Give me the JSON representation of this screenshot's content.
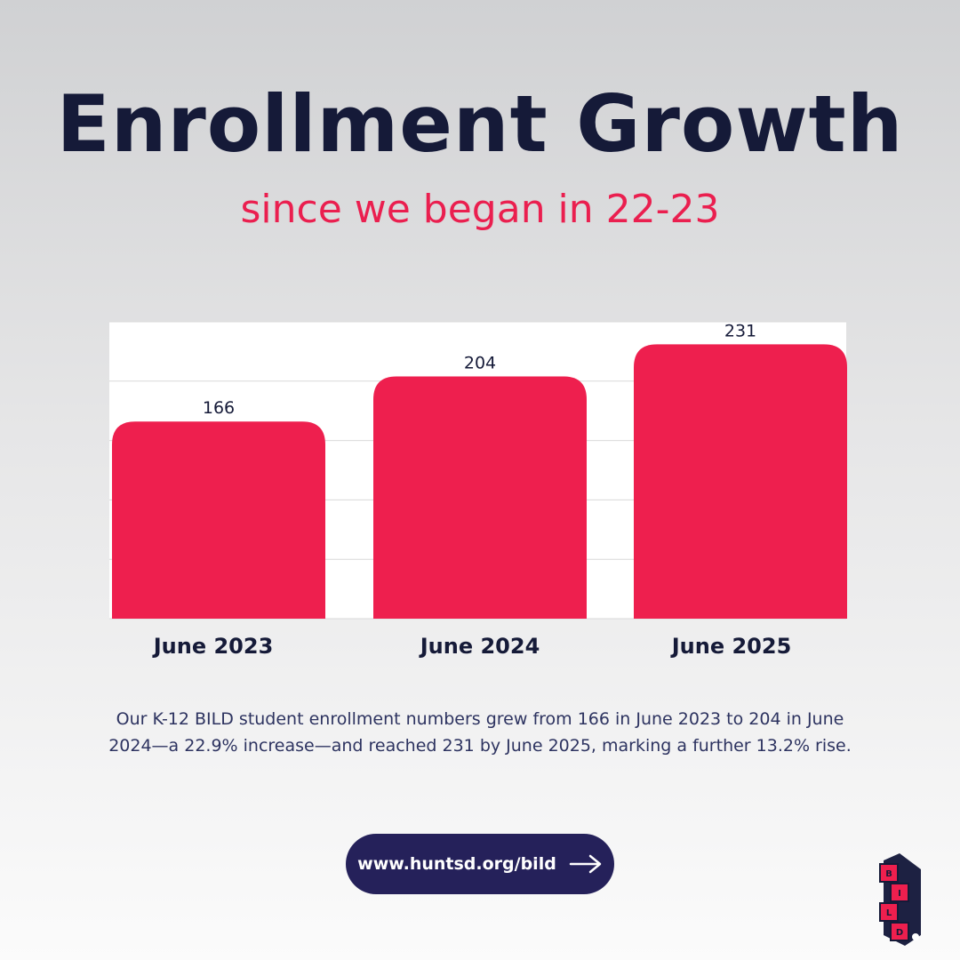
{
  "header": {
    "title": "Enrollment Growth",
    "subtitle": "since we began in 22-23"
  },
  "chart_data": {
    "type": "bar",
    "categories": [
      "June 2023",
      "June 2024",
      "June 2025"
    ],
    "values": [
      166,
      204,
      231
    ],
    "ylim": [
      0,
      250
    ],
    "grid": true,
    "bar_color": "#ee1f4e"
  },
  "description": "Our K-12 BILD student enrollment numbers  grew from 166 in June 2023 to 204 in June 2024—a 22.9% increase—and reached 231 by June 2025, marking a further 13.2% rise.",
  "cta": {
    "label": "www.huntsd.org/bild",
    "icon": "arrow-right-icon"
  },
  "logo": {
    "letters": [
      "B",
      "I",
      "L",
      "D"
    ]
  },
  "colors": {
    "title": "#151a38",
    "accent": "#ea1f4f",
    "button": "#25215a"
  }
}
